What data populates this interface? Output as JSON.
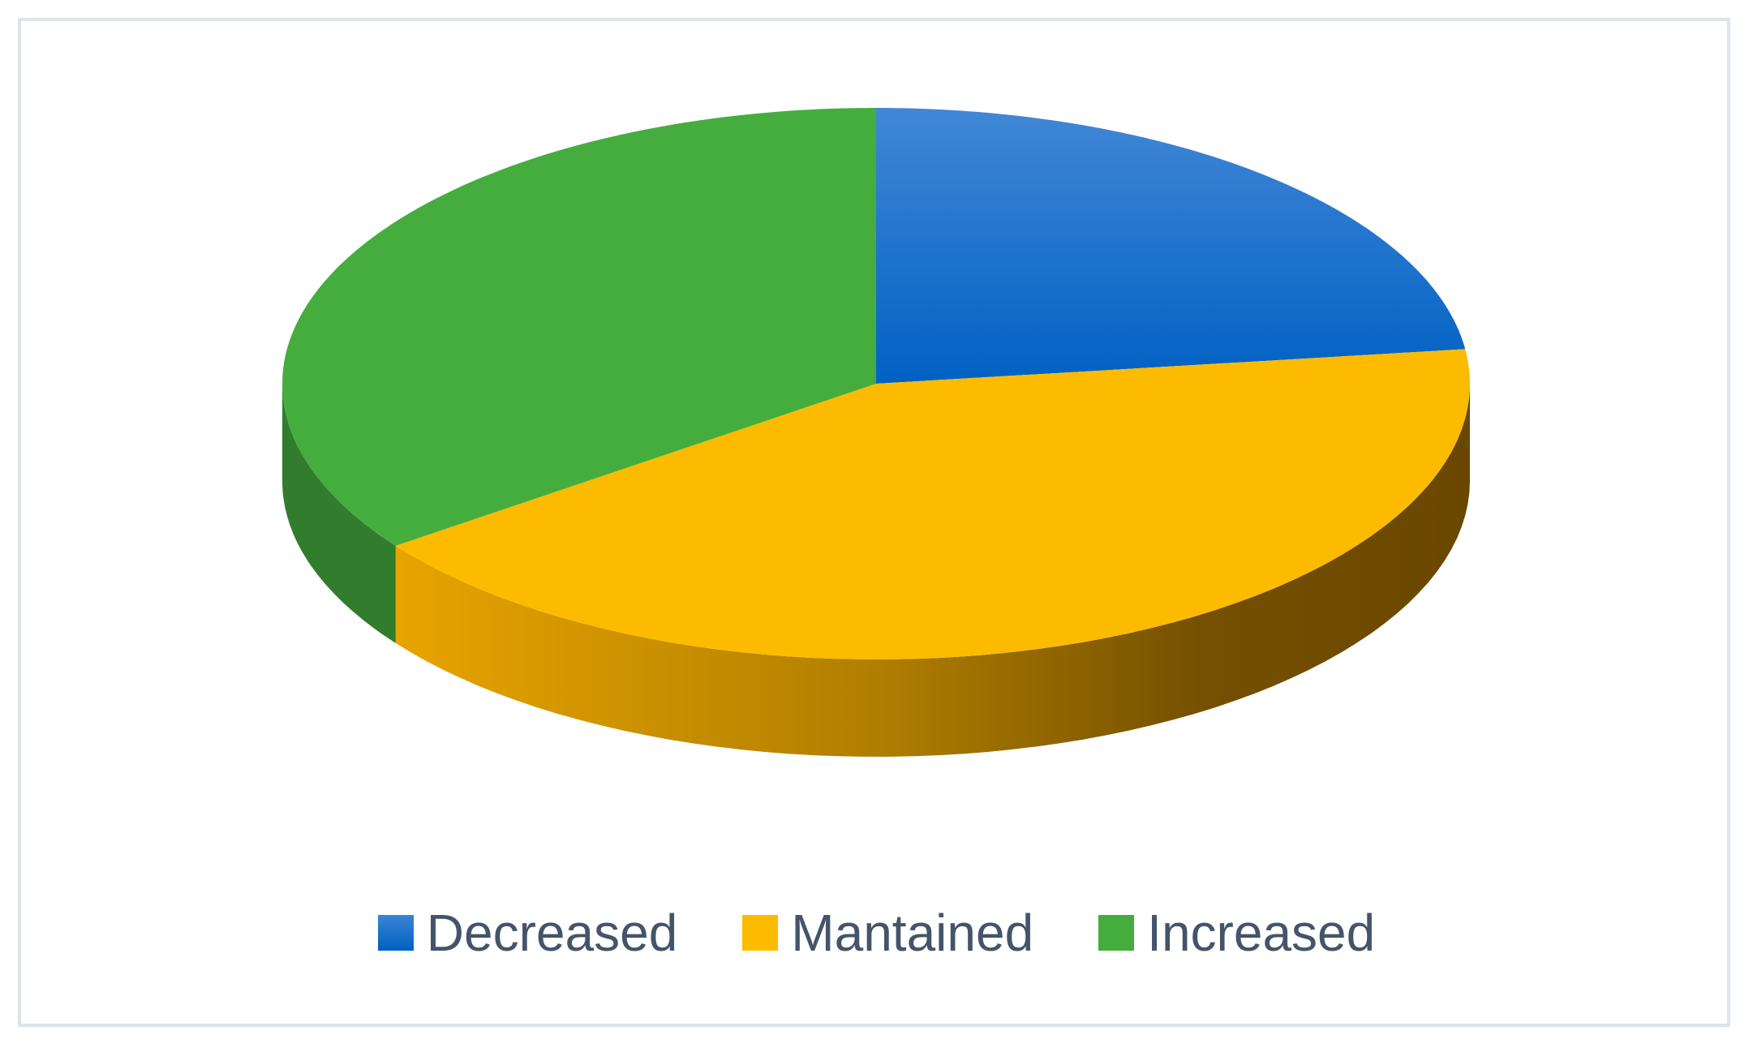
{
  "chart_data": {
    "type": "pie",
    "style": "3d",
    "categories": [
      "Decreased",
      "Mantained",
      "Increased"
    ],
    "values": [
      23,
      42,
      35
    ],
    "colors": [
      "#0566c9",
      "#fdbb00",
      "#44ad3e"
    ],
    "title": "",
    "legend_position": "bottom",
    "legend": [
      {
        "label": "Decreased",
        "color": "#0566c9"
      },
      {
        "label": "Mantained",
        "color": "#fdbb00"
      },
      {
        "label": "Increased",
        "color": "#44ad3e"
      }
    ]
  }
}
